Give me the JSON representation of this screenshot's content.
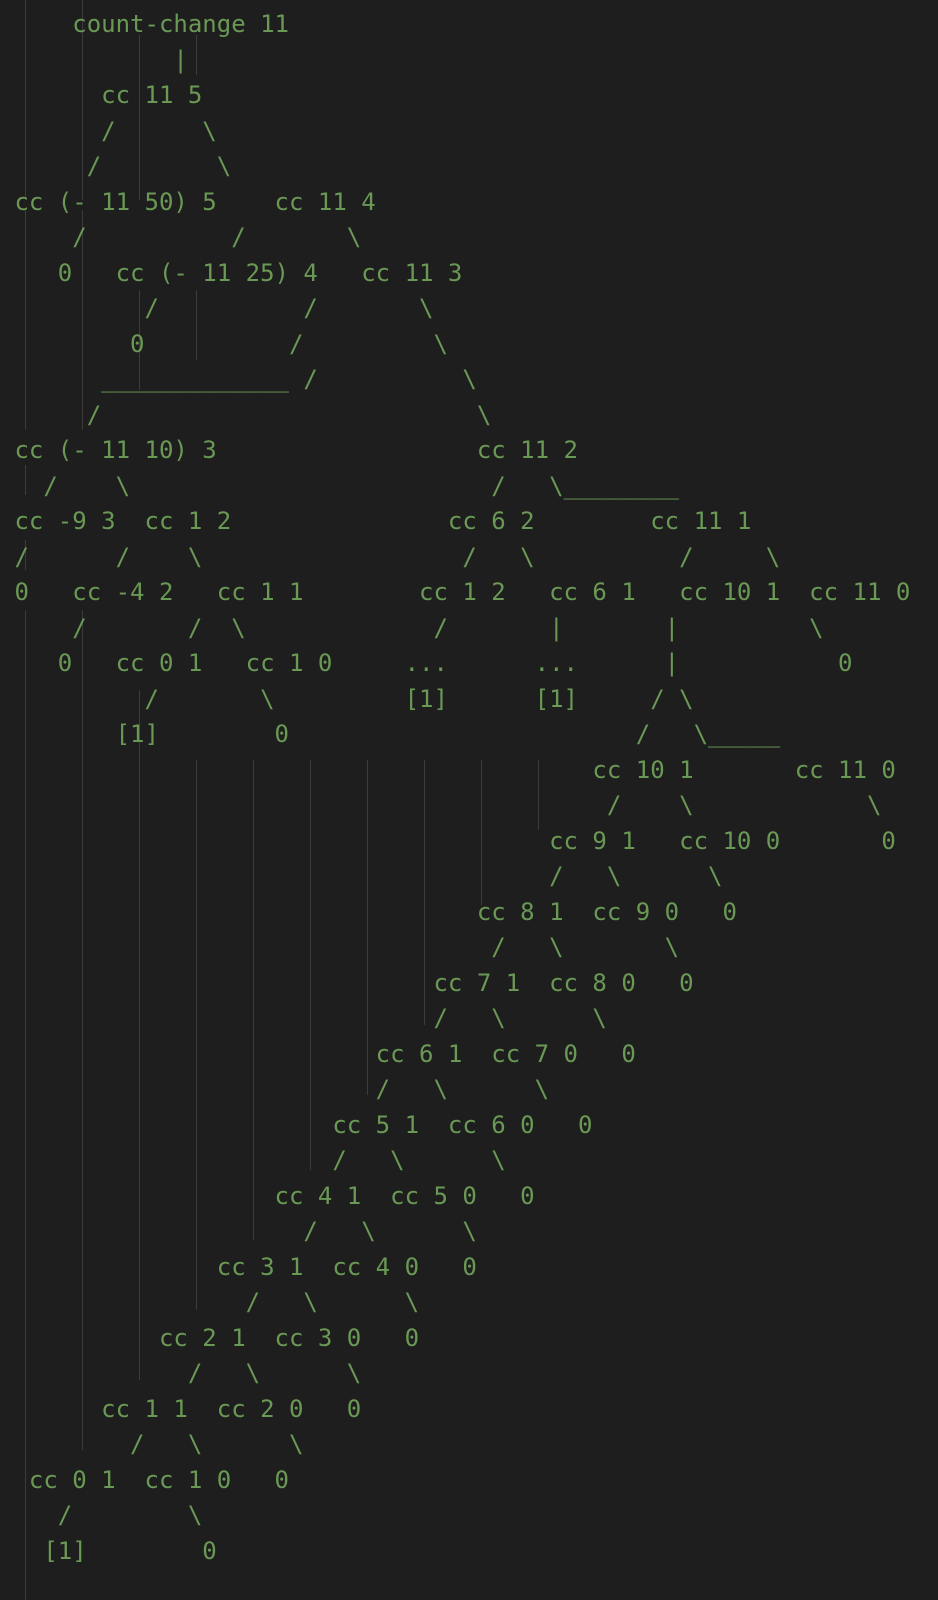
{
  "editor": {
    "text_color": "#6a9955",
    "background": "#1e1e1e",
    "indent_guide_color": "#3c3c3c",
    "lines": [
      "     count-change 11",
      "            |",
      "       cc 11 5",
      "       /      \\",
      "      /        \\",
      " cc (- 11 50) 5    cc 11 4",
      "     /          /       \\",
      "    0   cc (- 11 25) 4   cc 11 3",
      "          /          /       \\",
      "         0          /         \\",
      "       _____________ /          \\",
      "      /                          \\",
      " cc (- 11 10) 3                  cc 11 2",
      "   /    \\                         /   \\________",
      " cc -9 3  cc 1 2               cc 6 2        cc 11 1",
      " /      /    \\                  /   \\          /     \\",
      " 0   cc -4 2   cc 1 1        cc 1 2   cc 6 1   cc 10 1  cc 11 0",
      "     /       /  \\             /       |       |         \\",
      "    0   cc 0 1   cc 1 0     ...      ...      |           0",
      "          /       \\         [1]      [1]     / \\",
      "        [1]        0                        /   \\_____",
      "                                         cc 10 1       cc 11 0",
      "                                          /    \\            \\",
      "                                      cc 9 1   cc 10 0       0",
      "                                      /   \\      \\",
      "                                 cc 8 1  cc 9 0   0",
      "                                  /   \\       \\",
      "                              cc 7 1  cc 8 0   0",
      "                              /   \\      \\",
      "                          cc 6 1  cc 7 0   0",
      "                          /   \\      \\",
      "                       cc 5 1  cc 6 0   0",
      "                       /   \\      \\",
      "                   cc 4 1  cc 5 0   0",
      "                     /   \\      \\",
      "               cc 3 1  cc 4 0   0",
      "                 /   \\      \\",
      "           cc 2 1  cc 3 0   0",
      "             /   \\      \\",
      "       cc 1 1  cc 2 0   0",
      "         /   \\      \\",
      "  cc 0 1  cc 1 0   0",
      "    /        \\",
      "   [1]        0"
    ]
  }
}
